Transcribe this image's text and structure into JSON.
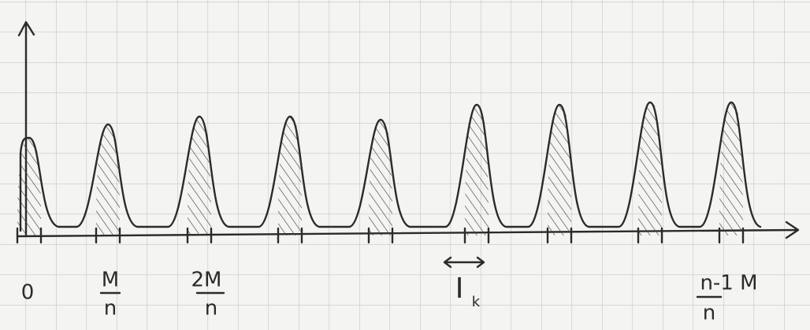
{
  "labels": [
    {
      "text": "0"
    },
    {
      "numerator": "M",
      "denominator": "n"
    },
    {
      "numerator": "2M",
      "denominator": "n"
    },
    {
      "main": "I",
      "subscript": "k"
    },
    {
      "numerator": "n-1 M",
      "denominator": "n"
    }
  ]
}
